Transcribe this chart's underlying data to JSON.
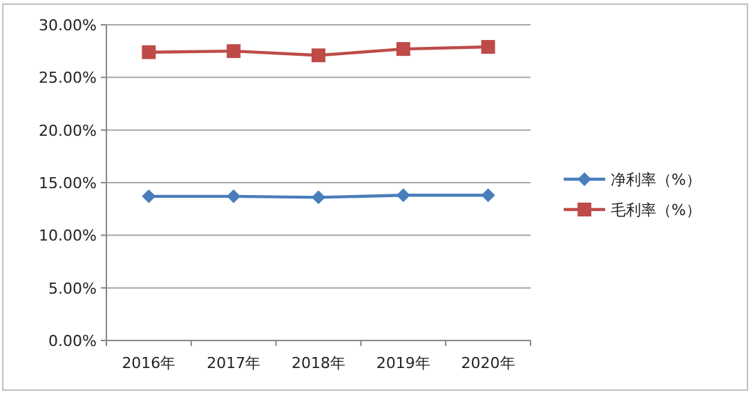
{
  "chart_data": {
    "type": "line",
    "categories": [
      "2016年",
      "2017年",
      "2018年",
      "2019年",
      "2020年"
    ],
    "series": [
      {
        "name": "净利率（%）",
        "color": "#4a7ebb",
        "marker": "diamond",
        "values": [
          13.7,
          13.7,
          13.6,
          13.8,
          13.8
        ]
      },
      {
        "name": "毛利率（%）",
        "color": "#be4b48",
        "marker": "square",
        "values": [
          27.4,
          27.5,
          27.1,
          27.7,
          27.9
        ]
      }
    ],
    "ylim": [
      0,
      30
    ],
    "yticks": [
      {
        "value": 0,
        "label": "0.00%"
      },
      {
        "value": 5,
        "label": "5.00%"
      },
      {
        "value": 10,
        "label": "10.00%"
      },
      {
        "value": 15,
        "label": "15.00%"
      },
      {
        "value": 20,
        "label": "20.00%"
      },
      {
        "value": 25,
        "label": "25.00%"
      },
      {
        "value": 30,
        "label": "30.00%"
      }
    ],
    "grid": "y",
    "legend": "right",
    "line_style": "solid"
  }
}
